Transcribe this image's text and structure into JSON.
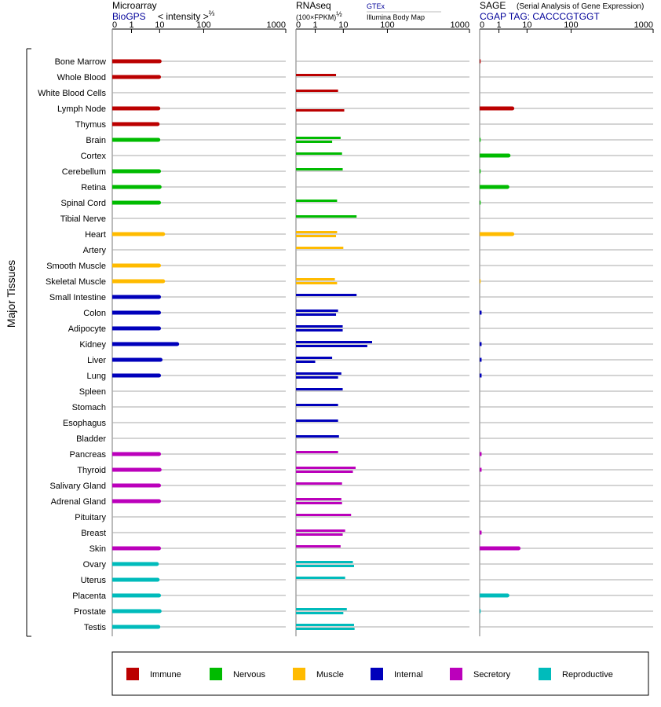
{
  "panels": [
    {
      "title": "Microarray",
      "source": "BioGPS",
      "unit_prefix": "< intensity >",
      "unit_exp": "⅔"
    },
    {
      "title": "RNAseq",
      "unit_prefix": "(100×FPKM)",
      "unit_exp": "½",
      "src_gtex": "GTEx",
      "src_illumina": "Illumina Body Map"
    },
    {
      "title": "SAGE",
      "subtitle": "(Serial Analysis of Gene Expression)",
      "tag": "CGAP TAG: CACCCGTGGT"
    }
  ],
  "axis_ticks": [
    "0",
    "1",
    "10",
    "100",
    "1000"
  ],
  "y_group_label": "Major Tissues",
  "colors": {
    "Immune": "#bb0000",
    "Nervous": "#00bb00",
    "Muscle": "#ffbb00",
    "Internal": "#0000bb",
    "Secretory": "#bb00bb",
    "Reproductive": "#00bbbb"
  },
  "legend": [
    "Immune",
    "Nervous",
    "Muscle",
    "Internal",
    "Secretory",
    "Reproductive"
  ],
  "chart_data": {
    "type": "bar",
    "categories": [
      "Bone Marrow",
      "Whole Blood",
      "White Blood Cells",
      "Lymph Node",
      "Thymus",
      "Brain",
      "Cortex",
      "Cerebellum",
      "Retina",
      "Spinal Cord",
      "Tibial Nerve",
      "Heart",
      "Artery",
      "Smooth Muscle",
      "Skeletal Muscle",
      "Small Intestine",
      "Colon",
      "Adipocyte",
      "Kidney",
      "Liver",
      "Lung",
      "Spleen",
      "Stomach",
      "Esophagus",
      "Bladder",
      "Pancreas",
      "Thyroid",
      "Salivary Gland",
      "Adrenal Gland",
      "Pituitary",
      "Breast",
      "Skin",
      "Ovary",
      "Uterus",
      "Placenta",
      "Prostate",
      "Testis"
    ],
    "category_group": [
      "Immune",
      "Immune",
      "Immune",
      "Immune",
      "Immune",
      "Nervous",
      "Nervous",
      "Nervous",
      "Nervous",
      "Nervous",
      "Nervous",
      "Muscle",
      "Muscle",
      "Muscle",
      "Muscle",
      "Internal",
      "Internal",
      "Internal",
      "Internal",
      "Internal",
      "Internal",
      "Internal",
      "Internal",
      "Internal",
      "Internal",
      "Secretory",
      "Secretory",
      "Secretory",
      "Secretory",
      "Secretory",
      "Secretory",
      "Secretory",
      "Reproductive",
      "Reproductive",
      "Reproductive",
      "Reproductive",
      "Reproductive"
    ],
    "axis_scale": "log-like",
    "xlim": [
      0,
      1000
    ],
    "series": [
      {
        "name": "Microarray",
        "values": [
          10,
          9.5,
          null,
          9,
          8.5,
          9,
          null,
          9.5,
          10,
          9.5,
          null,
          12,
          null,
          9.5,
          12,
          9.5,
          9.5,
          9.5,
          25,
          10.5,
          9.5,
          null,
          null,
          null,
          null,
          9.5,
          10,
          9.5,
          9.5,
          null,
          null,
          9.5,
          8,
          8.5,
          9.5,
          10,
          9
        ]
      },
      {
        "name": "RNAseq GTEx",
        "values": [
          null,
          5.5,
          6.5,
          null,
          null,
          8,
          9,
          9.5,
          null,
          6,
          20,
          6,
          10,
          null,
          5,
          20,
          6.5,
          9.5,
          45,
          4,
          8.5,
          9.5,
          6.5,
          6.5,
          7,
          6.5,
          19,
          9,
          8.5,
          15,
          11,
          8,
          16.5,
          11,
          null,
          12,
          17.5
        ]
      },
      {
        "name": "RNAseq Illumina",
        "values": [
          null,
          null,
          null,
          10.5,
          null,
          4,
          null,
          null,
          null,
          null,
          null,
          5.5,
          null,
          null,
          6,
          null,
          5.5,
          9.5,
          35,
          1,
          6.5,
          null,
          null,
          null,
          null,
          null,
          16.5,
          null,
          9,
          null,
          9.5,
          null,
          17.5,
          null,
          null,
          10,
          18
        ]
      },
      {
        "name": "SAGE",
        "values": [
          0.05,
          null,
          null,
          3,
          null,
          0.05,
          2.2,
          0.05,
          2,
          0.05,
          null,
          3,
          null,
          null,
          0.05,
          null,
          0.1,
          null,
          0.1,
          0.1,
          0.1,
          null,
          null,
          null,
          null,
          0.1,
          0.1,
          null,
          null,
          null,
          0.1,
          5,
          null,
          null,
          2,
          0.05,
          null
        ]
      }
    ]
  }
}
